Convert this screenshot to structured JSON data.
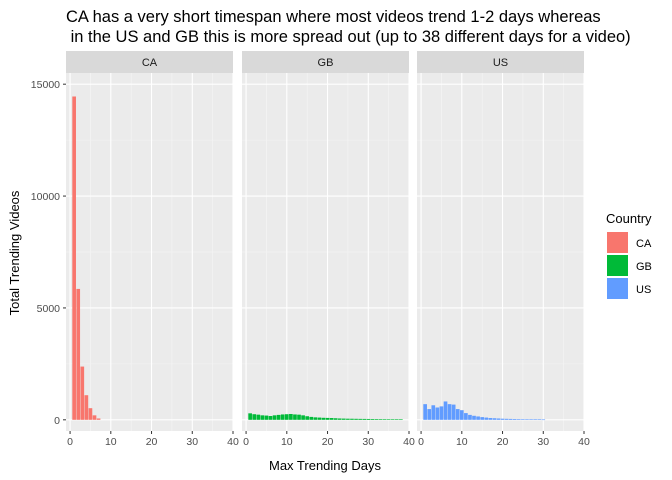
{
  "chart_data": {
    "type": "bar",
    "title_lines": [
      "CA has a very short timespan where most videos trend 1-2 days whereas",
      " in the US and GB this is more spread out (up to 38 different days for a video)"
    ],
    "xlabel": "Max Trending Days",
    "ylabel": "Total Trending Videos",
    "xlim": [
      -1,
      40
    ],
    "ylim": [
      -500,
      15500
    ],
    "x_ticks": [
      0,
      10,
      20,
      30,
      40
    ],
    "y_ticks": [
      0,
      5000,
      10000,
      15000
    ],
    "grid": true,
    "facets": [
      "CA",
      "GB",
      "US"
    ],
    "legend": {
      "title": "Country",
      "position": "right",
      "entries": [
        {
          "label": "CA",
          "color": "#F8766D"
        },
        {
          "label": "GB",
          "color": "#00BA38"
        },
        {
          "label": "US",
          "color": "#619CFF"
        }
      ]
    },
    "series": [
      {
        "name": "CA",
        "color": "#F8766D",
        "x": [
          1,
          2,
          3,
          4,
          5,
          6,
          7
        ],
        "values": [
          14450,
          5850,
          2380,
          1100,
          520,
          200,
          60
        ]
      },
      {
        "name": "GB",
        "color": "#00BA38",
        "x": [
          1,
          2,
          3,
          4,
          5,
          6,
          7,
          8,
          9,
          10,
          11,
          12,
          13,
          14,
          15,
          16,
          17,
          18,
          19,
          20,
          21,
          22,
          23,
          24,
          25,
          26,
          27,
          28,
          29,
          30,
          31,
          32,
          33,
          34,
          35,
          36,
          37,
          38
        ],
        "values": [
          290,
          250,
          230,
          200,
          190,
          170,
          200,
          220,
          240,
          250,
          260,
          240,
          230,
          200,
          160,
          130,
          110,
          100,
          90,
          85,
          80,
          70,
          60,
          55,
          50,
          48,
          45,
          42,
          40,
          38,
          35,
          32,
          30,
          28,
          25,
          22,
          20,
          18
        ]
      },
      {
        "name": "US",
        "color": "#619CFF",
        "x": [
          1,
          2,
          3,
          4,
          5,
          6,
          7,
          8,
          9,
          10,
          11,
          12,
          13,
          14,
          15,
          16,
          17,
          18,
          19,
          20,
          21,
          22,
          23,
          24,
          25,
          26,
          27,
          28,
          29,
          30
        ],
        "values": [
          700,
          480,
          650,
          550,
          600,
          820,
          700,
          680,
          480,
          430,
          300,
          220,
          180,
          150,
          120,
          100,
          80,
          70,
          60,
          50,
          45,
          40,
          35,
          30,
          28,
          25,
          22,
          20,
          18,
          15
        ]
      }
    ]
  }
}
